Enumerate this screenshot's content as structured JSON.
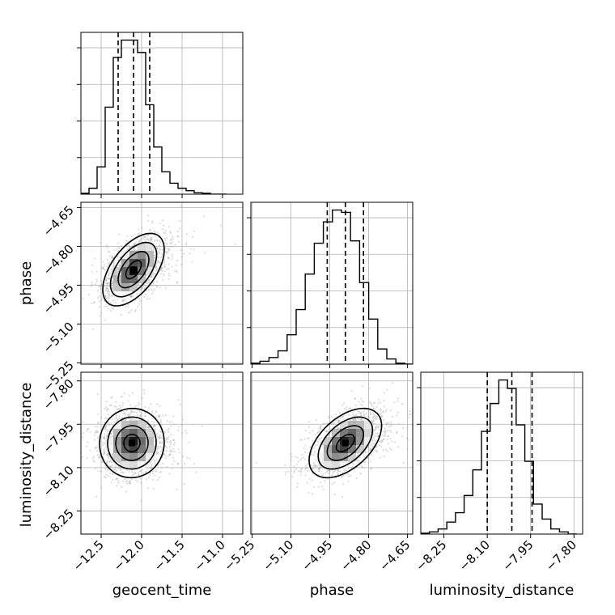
{
  "chart_data": {
    "type": "corner",
    "parameters": [
      "geocent_time",
      "phase",
      "luminosity_distance"
    ],
    "axis_labels": {
      "x": [
        "geocent_time",
        "phase",
        "luminosity_distance"
      ],
      "y": [
        "",
        "phase",
        "luminosity_distance"
      ]
    },
    "ranges": {
      "geocent_time": [
        -12.75,
        -10.75
      ],
      "phase": [
        -5.255,
        -4.63
      ],
      "luminosity_distance": [
        -8.33,
        -7.77
      ]
    },
    "ticks": {
      "geocent_time": [
        -12.5,
        -12.0,
        -11.5,
        -11.0
      ],
      "phase": [
        -5.25,
        -5.1,
        -4.95,
        -4.8,
        -4.65
      ],
      "luminosity_distance": [
        -8.25,
        -8.1,
        -7.95,
        -7.8
      ]
    },
    "tick_labels": {
      "geocent_time": [
        "−12.5",
        "−12.0",
        "−11.5",
        "−11.0"
      ],
      "phase": [
        "−5.25",
        "−5.10",
        "−4.95",
        "−4.80",
        "−4.65"
      ],
      "luminosity_distance": [
        "−8.25",
        "−8.10",
        "−7.95",
        "−7.80"
      ]
    },
    "quantiles": {
      "geocent_time": [
        -12.29,
        -12.1,
        -11.9
      ],
      "phase": [
        -4.96,
        -4.89,
        -4.82
      ],
      "luminosity_distance": [
        -8.1,
        -8.015,
        -7.945
      ]
    },
    "histograms": {
      "geocent_time": {
        "bin_edges": [
          -12.75,
          -12.65,
          -12.55,
          -12.45,
          -12.35,
          -12.25,
          -12.15,
          -12.05,
          -11.95,
          -11.85,
          -11.75,
          -11.65,
          -11.55,
          -11.45,
          -11.35,
          -11.25,
          -11.15,
          -11.05,
          -10.95
        ],
        "counts": [
          2,
          12,
          55,
          175,
          275,
          310,
          310,
          285,
          180,
          95,
          45,
          22,
          12,
          7,
          3,
          2,
          0,
          0
        ]
      },
      "phase": {
        "bin_edges": [
          -5.255,
          -5.22,
          -5.185,
          -5.15,
          -5.115,
          -5.08,
          -5.045,
          -5.01,
          -4.975,
          -4.94,
          -4.905,
          -4.87,
          -4.835,
          -4.8,
          -4.765,
          -4.73,
          -4.695,
          -4.66,
          -4.63
        ],
        "counts": [
          2,
          6,
          14,
          28,
          62,
          115,
          190,
          255,
          300,
          325,
          320,
          260,
          172,
          95,
          32,
          11,
          2,
          0
        ]
      },
      "luminosity_distance": {
        "bin_edges": [
          -8.33,
          -8.3,
          -8.27,
          -8.24,
          -8.21,
          -8.18,
          -8.15,
          -8.12,
          -8.09,
          -8.06,
          -8.03,
          -8.0,
          -7.97,
          -7.94,
          -7.91,
          -7.88,
          -7.85,
          -7.82,
          -7.79
        ],
        "counts": [
          2,
          5,
          12,
          28,
          50,
          90,
          150,
          240,
          305,
          360,
          340,
          255,
          170,
          70,
          35,
          12,
          5,
          0
        ]
      }
    },
    "pairs": [
      {
        "x": "geocent_time",
        "y": "phase",
        "mean": [
          -12.1,
          -4.89
        ],
        "std": [
          0.19,
          0.07
        ],
        "correlation": 0.55
      },
      {
        "x": "geocent_time",
        "y": "luminosity_distance",
        "mean": [
          -12.12,
          -8.015
        ],
        "std": [
          0.2,
          0.06
        ],
        "correlation": 0.02
      },
      {
        "x": "phase",
        "y": "luminosity_distance",
        "mean": [
          -4.89,
          -8.015
        ],
        "std": [
          0.07,
          0.06
        ],
        "correlation": 0.5
      }
    ],
    "contour_levels_sigma": [
      0.5,
      1.0,
      1.5,
      2.0
    ],
    "grid": true,
    "colors": {
      "line": "#000000",
      "points": "#9a9a9a",
      "density": "#000000",
      "grid": "#b0b0b0"
    }
  }
}
